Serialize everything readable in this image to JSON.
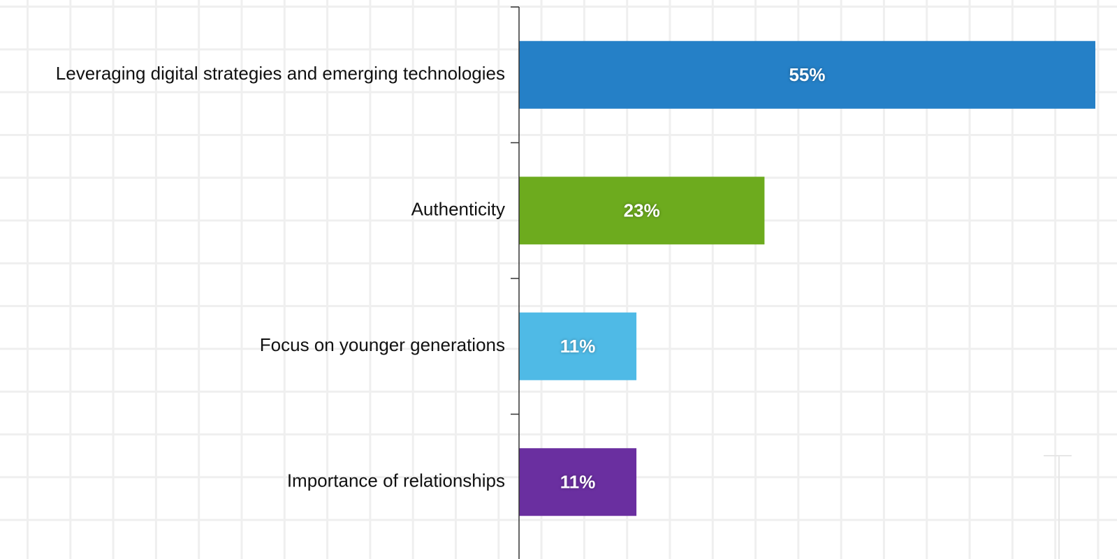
{
  "chart_data": {
    "type": "bar",
    "orientation": "horizontal",
    "categories": [
      "Leveraging digital strategies and emerging technologies",
      "Authenticity",
      "Focus on younger generations",
      "Importance of relationships"
    ],
    "values": [
      55,
      23,
      11,
      11
    ],
    "value_labels": [
      "55%",
      "23%",
      "11%",
      "11%"
    ],
    "colors": [
      "#2580c7",
      "#6dab1e",
      "#4fbae6",
      "#6a2fa0"
    ],
    "xlim": [
      0,
      54
    ]
  }
}
